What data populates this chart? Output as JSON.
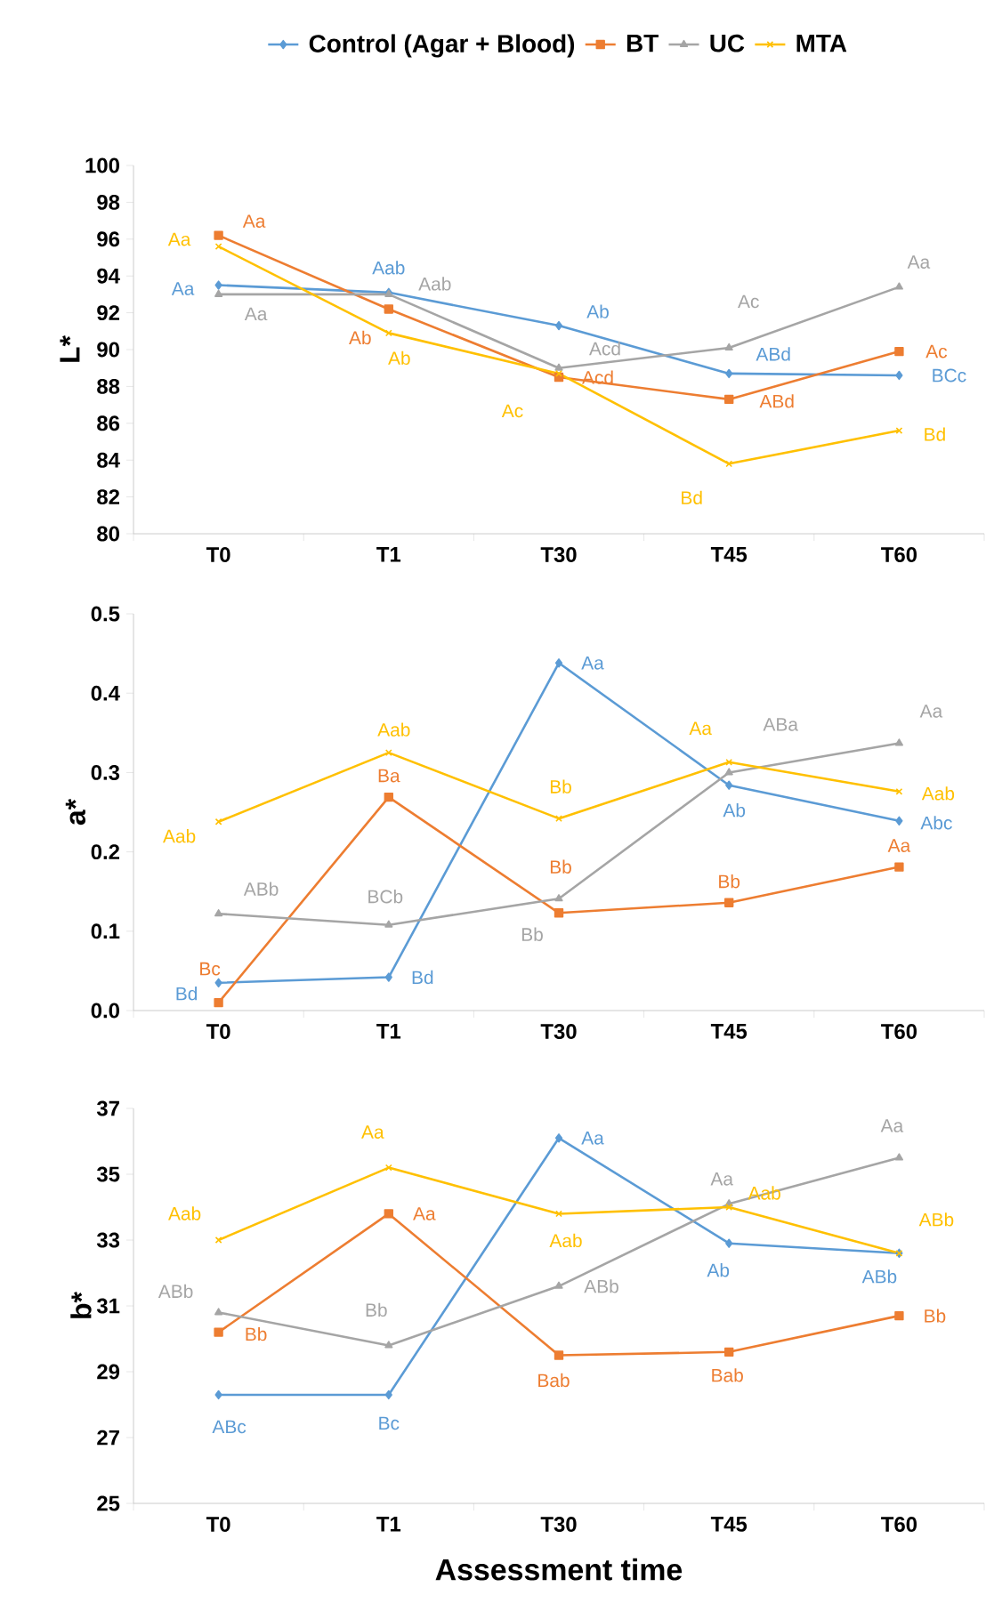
{
  "chart_data": [
    {
      "type": "line",
      "categories": [
        "T0",
        "T1",
        "T30",
        "T45",
        "T60"
      ],
      "ylabel": "L*",
      "ylim": [
        80,
        100
      ],
      "yticks": [
        80,
        82,
        84,
        86,
        88,
        90,
        92,
        94,
        96,
        98,
        100
      ],
      "legend": "top",
      "series": [
        {
          "name": "Control (Agar + Blood)",
          "color": "#5b9bd5",
          "marker": "diamond",
          "values": [
            93.5,
            93.1,
            91.3,
            88.7,
            88.6
          ],
          "value_labels": [
            "Aa",
            "Aab",
            "Ab",
            "ABd",
            "BCc"
          ]
        },
        {
          "name": "BT",
          "color": "#ed7d31",
          "marker": "square",
          "values": [
            96.2,
            92.2,
            88.5,
            87.3,
            89.9
          ],
          "value_labels": [
            "Aa",
            "Ab",
            "Acd",
            "ABd",
            "Ac"
          ]
        },
        {
          "name": "UC",
          "color": "#a5a5a5",
          "marker": "triangle",
          "values": [
            93.0,
            93.0,
            89.0,
            90.1,
            93.4
          ],
          "value_labels": [
            "Aa",
            "Aab",
            "Acd",
            "Ac",
            "Aa"
          ]
        },
        {
          "name": "MTA",
          "color": "#ffc000",
          "marker": "cross",
          "values": [
            95.6,
            90.9,
            88.7,
            83.8,
            85.6
          ],
          "value_labels": [
            "Aa",
            "Ab",
            "Ac",
            "Bd",
            "Bd"
          ]
        }
      ]
    },
    {
      "type": "line",
      "categories": [
        "T0",
        "T1",
        "T30",
        "T45",
        "T60"
      ],
      "ylabel": "a*",
      "ylim": [
        0,
        0.5
      ],
      "yticks": [
        {
          "value": 0,
          "label": "0.0"
        },
        0.1,
        0.2,
        0.3,
        0.4,
        0.5
      ],
      "series": [
        {
          "color": "#5b9bd5",
          "marker": "diamond",
          "values": [
            0.035,
            0.042,
            0.438,
            0.284,
            0.239
          ],
          "value_labels": [
            "Bd",
            "Bd",
            "Aa",
            "Ab",
            "Abc"
          ]
        },
        {
          "color": "#ed7d31",
          "marker": "square",
          "values": [
            0.01,
            0.269,
            0.123,
            0.136,
            0.181
          ],
          "value_labels": [
            "Bc",
            "Ba",
            "Bb",
            "Bb",
            "Aa"
          ]
        },
        {
          "color": "#a5a5a5",
          "marker": "triangle",
          "values": [
            0.122,
            0.108,
            0.141,
            0.3,
            0.337
          ],
          "value_labels": [
            "ABb",
            "BCb",
            "Bb",
            "ABa",
            "Aa"
          ]
        },
        {
          "color": "#ffc000",
          "marker": "cross",
          "values": [
            0.238,
            0.325,
            0.242,
            0.313,
            0.276
          ],
          "value_labels": [
            "Aab",
            "Aab",
            "Bb",
            "Aa",
            "Aab"
          ]
        }
      ]
    },
    {
      "type": "line",
      "categories": [
        "T0",
        "T1",
        "T30",
        "T45",
        "T60"
      ],
      "xlabel": "Assessment time",
      "ylabel": "b*",
      "ylim": [
        25,
        37
      ],
      "yticks": [
        25,
        27,
        29,
        31,
        33,
        35,
        37
      ],
      "series": [
        {
          "color": "#5b9bd5",
          "marker": "diamond",
          "values": [
            28.3,
            28.3,
            36.1,
            32.9,
            32.6
          ],
          "value_labels": [
            "ABc",
            "Bc",
            "Aa",
            "Ab",
            "ABb"
          ]
        },
        {
          "color": "#ed7d31",
          "marker": "square",
          "values": [
            30.2,
            33.8,
            29.5,
            29.6,
            30.7
          ],
          "value_labels": [
            "Bb",
            "Aa",
            "Bab",
            "Bab",
            "Bb"
          ]
        },
        {
          "color": "#a5a5a5",
          "marker": "triangle",
          "values": [
            30.8,
            29.8,
            31.6,
            34.1,
            35.5
          ],
          "value_labels": [
            "ABb",
            "Bb",
            "ABb",
            "Aa",
            "Aa"
          ]
        },
        {
          "color": "#ffc000",
          "marker": "cross",
          "values": [
            33.0,
            35.2,
            33.8,
            34.0,
            32.6
          ],
          "value_labels": [
            "Aab",
            "Aa",
            "Aab",
            "Aab",
            "ABb"
          ]
        }
      ]
    }
  ]
}
